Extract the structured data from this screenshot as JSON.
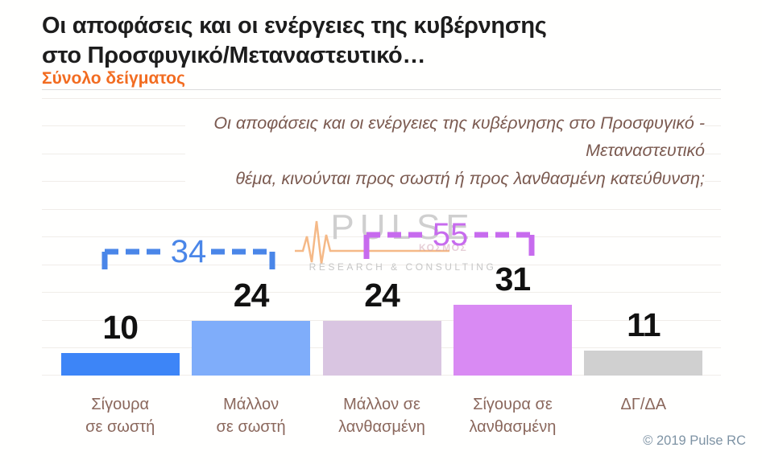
{
  "header": {
    "title": "Οι αποφάσεις και οι ενέργειες της κυβέρνησης\nστο Προσφυγικό/Μεταναστευτικό…",
    "subtitle": "Σύνολο δείγματος",
    "subtitle_color": "#f26c21"
  },
  "question": "Οι αποφάσεις και οι ενέργειες της κυβέρνησης στο Προσφυγικό - Μεταναστευτικό\nθέμα, κινούνται προς σωστή ή προς λανθασμένη κατεύθυνση;",
  "watermark": {
    "name": "PULSE",
    "tagline": "RESEARCH & CONSULTING",
    "subtext": "ΚΟΣΜΟΣ",
    "pulse_line_color": "#f3ad72"
  },
  "chart_data": {
    "type": "bar",
    "title": "Οι αποφάσεις και οι ενέργειες της κυβέρνησης στο Προσφυγικό/Μεταναστευτικό…",
    "categories": [
      "Σίγουρα σε σωστή",
      "Μάλλον σε σωστή",
      "Μάλλον σε λανθασμένη",
      "Σίγουρα σε λανθασμένη",
      "ΔΓ/ΔΑ"
    ],
    "categories_display": [
      "Σίγουρα\nσε σωστή",
      "Μάλλον\nσε σωστή",
      "Μάλλον σε\nλανθασμένη",
      "Σίγουρα σε\nλανθασμένη",
      "ΔΓ/ΔΑ"
    ],
    "values": [
      10,
      24,
      24,
      31,
      11
    ],
    "bar_colors": [
      "#3d85f7",
      "#7fadfa",
      "#d9c5e1",
      "#d98af3",
      "#d0d0d0"
    ],
    "value_label_color": "#111111",
    "xlabel": "",
    "ylabel": "",
    "ylim": [
      0,
      120
    ],
    "grid": true,
    "legend": false,
    "annotations": [
      {
        "label": "34",
        "spans": [
          "Σίγουρα σε σωστή",
          "Μάλλον σε σωστή"
        ],
        "color": "#4a86e8"
      },
      {
        "label": "55",
        "spans": [
          "Μάλλον σε λανθασμένη",
          "Σίγουρα σε λανθασμένη"
        ],
        "color": "#c76bee"
      }
    ]
  },
  "footer": {
    "copyright": "© 2019 Pulse RC"
  }
}
